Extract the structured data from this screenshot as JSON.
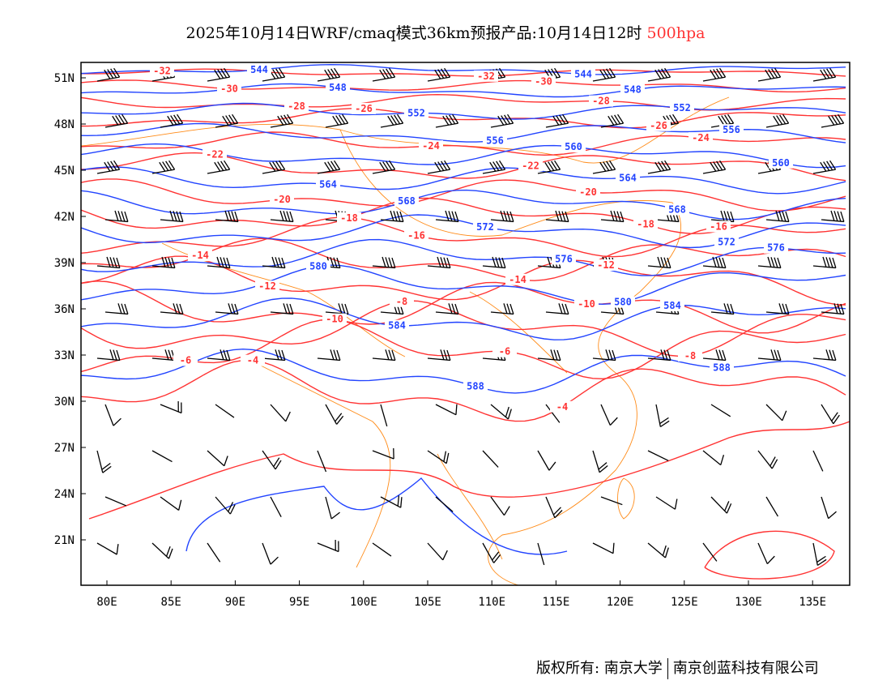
{
  "title": {
    "text": "2025年10月14日WRF/cmaq模式36km预报产品:10月14日12时",
    "level": "500hpa"
  },
  "axes": {
    "lon_labels": [
      "80E",
      "85E",
      "90E",
      "95E",
      "100E",
      "105E",
      "110E",
      "115E",
      "120E",
      "125E",
      "130E",
      "135E"
    ],
    "lat_labels": [
      "51N",
      "48N",
      "45N",
      "42N",
      "39N",
      "36N",
      "33N",
      "30N",
      "27N",
      "24N",
      "21N"
    ]
  },
  "colors": {
    "height": "#2244ff",
    "temperature": "#ff3333",
    "coast": "#ff8c1a",
    "barb": "#000000"
  },
  "height_contours": [
    "544",
    "548",
    "552",
    "556",
    "560",
    "564",
    "568",
    "572",
    "576",
    "580",
    "584",
    "588"
  ],
  "temperature_contours": [
    "-32",
    "-30",
    "-28",
    "-26",
    "-24",
    "-22",
    "-20",
    "-18",
    "-16",
    "-14",
    "-12",
    "-10",
    "-8",
    "-6",
    "-4"
  ],
  "footer": {
    "copyright": "版权所有: 南京大学",
    "company": "南京创蓝科技有限公司"
  }
}
